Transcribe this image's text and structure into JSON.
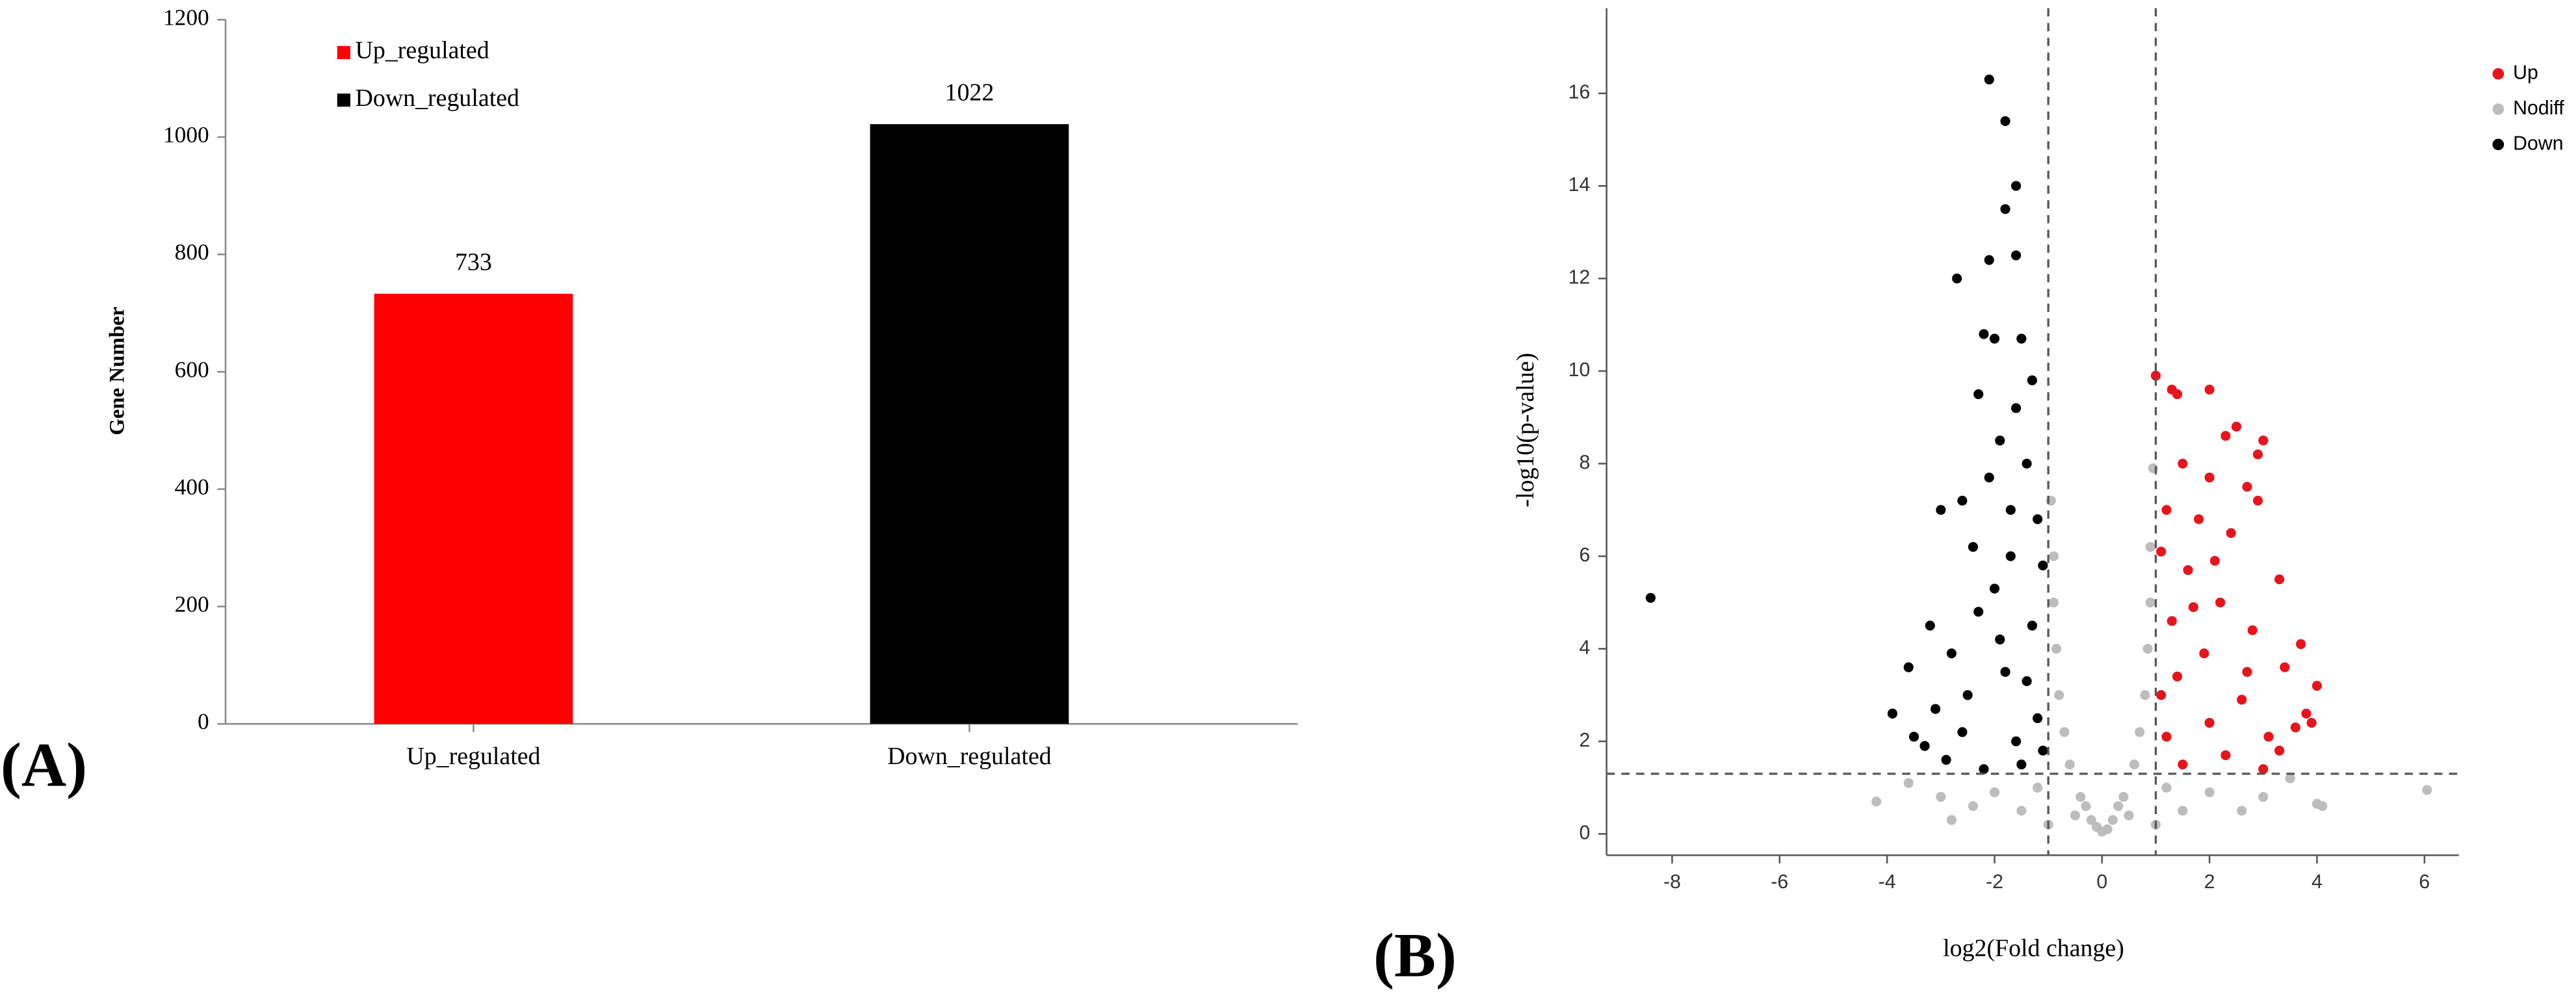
{
  "chart_data": [
    {
      "type": "bar",
      "panel_label": "(A)",
      "ylabel": "Gene Number",
      "categories": [
        "Up_regulated",
        "Down_regulated"
      ],
      "values": [
        733,
        1022
      ],
      "colors": [
        "#ff0000",
        "#000000"
      ],
      "ylim": [
        0,
        1200
      ],
      "yticks": [
        0,
        200,
        400,
        600,
        800,
        1000,
        1200
      ],
      "legend": "upper left"
    },
    {
      "type": "scatter",
      "panel_label": "(B)",
      "xlabel": "log2(Fold change)",
      "ylabel": "-log10(p-value)",
      "xlim": [
        -9.22,
        6.64
      ],
      "ylim": [
        -0.46,
        17.84
      ],
      "xticks": [
        -8,
        -6,
        -4,
        -2,
        0,
        2,
        4,
        6
      ],
      "yticks": [
        0,
        2,
        4,
        6,
        8,
        10,
        12,
        14,
        16
      ],
      "vlines": [
        -1,
        1
      ],
      "hlines": [
        1.3
      ],
      "legend": "upper right",
      "series": [
        {
          "name": "Up",
          "color": "#e8141c",
          "x": [
            1.0,
            1.4,
            1.3,
            2.0,
            2.5,
            2.3,
            3.0,
            2.9,
            1.5,
            2.7,
            2.0,
            2.9,
            1.2,
            1.8,
            2.4,
            1.1,
            3.3,
            1.6,
            2.2,
            1.3,
            2.8,
            3.7,
            3.4,
            1.9,
            4.0,
            3.8,
            3.9,
            3.6,
            1.1,
            2.6,
            3.1,
            2.0,
            3.3,
            1.5,
            2.3,
            3.0,
            1.2,
            2.7,
            1.7,
            2.1,
            1.4
          ],
          "y": [
            9.9,
            9.5,
            9.6,
            9.6,
            8.8,
            8.6,
            8.5,
            8.2,
            8.0,
            7.5,
            7.7,
            7.2,
            7.0,
            6.8,
            6.5,
            6.1,
            5.5,
            5.7,
            5.0,
            4.6,
            4.4,
            4.1,
            3.6,
            3.9,
            3.2,
            2.6,
            2.4,
            2.3,
            3.0,
            2.9,
            2.1,
            2.4,
            1.8,
            1.5,
            1.7,
            1.4,
            2.1,
            3.5,
            4.9,
            5.9,
            3.4
          ]
        },
        {
          "name": "Nodiff",
          "color": "#bdbdbd",
          "x": [
            0,
            0.2,
            -0.2,
            0.4,
            -0.4,
            0.6,
            -0.6,
            0.8,
            -0.8,
            0.9,
            -0.9,
            0.95,
            -0.95,
            0.5,
            -0.5,
            -1.5,
            1.5,
            -2,
            2,
            -3,
            3,
            -4.2,
            4.1,
            4.0,
            6.05,
            -2.4,
            2.6,
            -1.2,
            1.2,
            -0.7,
            0.7,
            -3.6,
            3.5,
            -2.8,
            0.85,
            -0.85,
            -0.3,
            0.3,
            -1,
            1,
            0.1,
            -0.1,
            0.9,
            -0.9
          ],
          "y": [
            0.05,
            0.3,
            0.3,
            0.8,
            0.8,
            1.5,
            1.5,
            3,
            3,
            5,
            5,
            7.9,
            7.2,
            0.4,
            0.4,
            0.5,
            0.5,
            0.9,
            0.9,
            0.8,
            0.8,
            0.7,
            0.6,
            0.65,
            0.95,
            0.6,
            0.5,
            1.0,
            1.0,
            2.2,
            2.2,
            1.1,
            1.2,
            0.3,
            4,
            4,
            0.6,
            0.6,
            0.2,
            0.2,
            0.1,
            0.15,
            6.2,
            6.0
          ]
        },
        {
          "name": "Down",
          "color": "#000000",
          "x": [
            -8.4,
            -2.1,
            -1.8,
            -1.6,
            -1.8,
            -1.6,
            -2.1,
            -2.7,
            -2.2,
            -1.5,
            -2.0,
            -1.3,
            -1.6,
            -2.3,
            -1.9,
            -2.6,
            -3.0,
            -1.4,
            -2.1,
            -1.2,
            -2.4,
            -1.7,
            -3.2,
            -2.8,
            -3.6,
            -3.9,
            -3.1,
            -2.5,
            -3.3,
            -2.9,
            -3.5,
            -2.2,
            -1.5,
            -1.2,
            -1.8,
            -1.3,
            -2.0,
            -1.1,
            -1.6,
            -2.6,
            -1.4,
            -1.9,
            -1.1,
            -2.3,
            -1.7
          ],
          "y": [
            5.1,
            16.3,
            15.4,
            14.0,
            13.5,
            12.5,
            12.4,
            12.0,
            10.8,
            10.7,
            10.7,
            9.8,
            9.2,
            9.5,
            8.5,
            7.2,
            7.0,
            8.0,
            7.7,
            6.8,
            6.2,
            6.0,
            4.5,
            3.9,
            3.6,
            2.6,
            2.7,
            3.0,
            1.9,
            1.6,
            2.1,
            1.4,
            1.5,
            2.5,
            3.5,
            4.5,
            5.3,
            5.8,
            2.0,
            2.2,
            3.3,
            4.2,
            1.8,
            4.8,
            7.0
          ]
        }
      ]
    }
  ]
}
